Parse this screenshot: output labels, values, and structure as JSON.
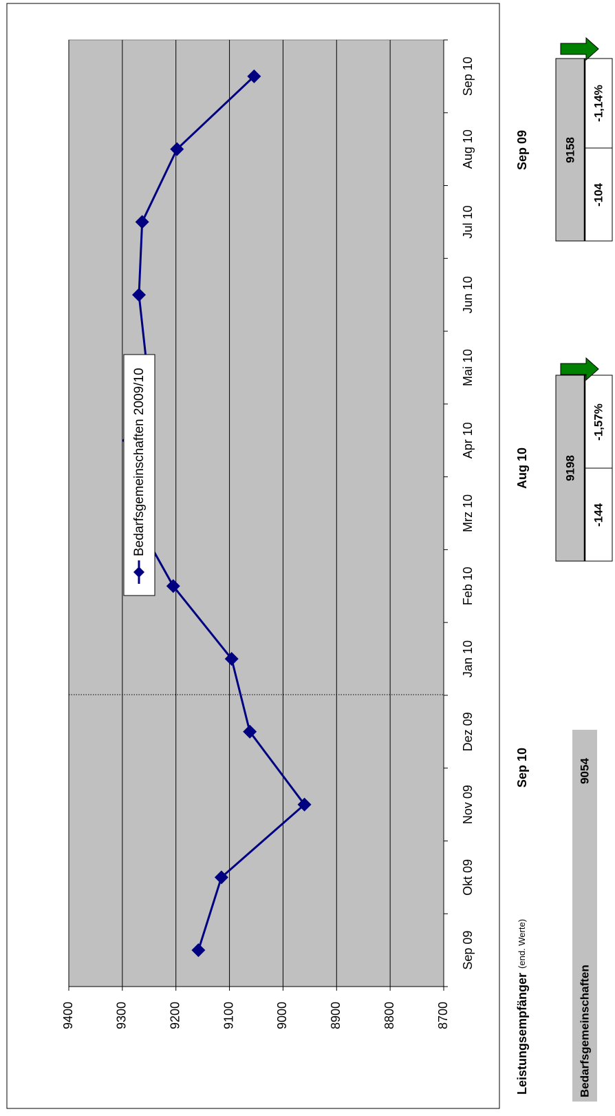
{
  "chart_data": {
    "type": "line",
    "categories": [
      "Sep 09",
      "Okt 09",
      "Nov 09",
      "Dez 09",
      "Jan 10",
      "Feb 10",
      "Mrz 10",
      "Apr 10",
      "Mai 10",
      "Jun 10",
      "Jul 10",
      "Aug 10",
      "Sep 10"
    ],
    "series": [
      {
        "name": "Bedarfsgemeinschaften 2009/10",
        "color": "#000080",
        "values": [
          9158,
          9115,
          8960,
          9062,
          9096,
          9205,
          9281,
          9288,
          9254,
          9269,
          9263,
          9198,
          9054
        ]
      }
    ],
    "ylim": [
      8700,
      9400
    ],
    "yticks": [
      8700,
      8800,
      8900,
      9000,
      9100,
      9200,
      9300,
      9400
    ],
    "grid": true
  },
  "summary": {
    "title": "Leistungsempfänger",
    "subtitle": "(end. Werte)",
    "row_label": "Bedarfsgemeinschaften",
    "current": {
      "period": "Sep 10",
      "value": 9054
    },
    "comparisons": [
      {
        "period": "Aug 10",
        "value": 9198,
        "change": -144,
        "change_pct": "-1,57%"
      },
      {
        "period": "Sep 09",
        "value": 9158,
        "change": -104,
        "change_pct": "-1,14%"
      }
    ]
  }
}
